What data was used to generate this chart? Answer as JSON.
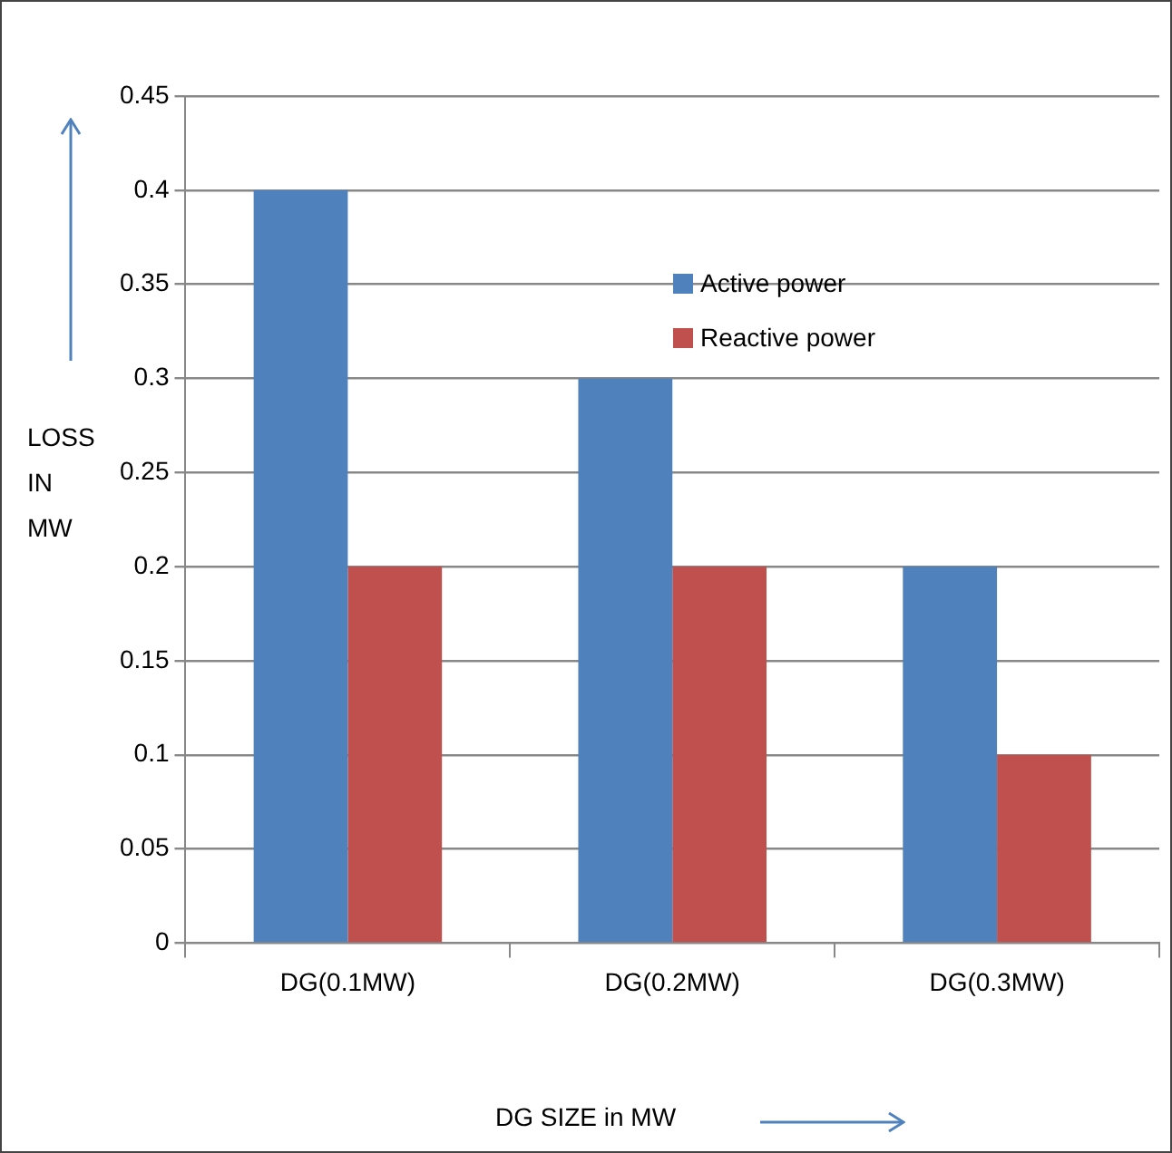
{
  "chart_data": {
    "type": "bar",
    "xlabel": "DG SIZE in MW",
    "ylabel": "LOSS IN MW",
    "categories": [
      "DG(0.1MW)",
      "DG(0.2MW)",
      "DG(0.3MW)"
    ],
    "series": [
      {
        "name": "Active power",
        "color": "#4f81bd",
        "values": [
          0.4,
          0.3,
          0.2
        ]
      },
      {
        "name": "Reactive power",
        "color": "#c0504d",
        "values": [
          0.2,
          0.2,
          0.1
        ]
      }
    ],
    "ylim": [
      0,
      0.45
    ],
    "yticks": [
      0,
      0.05,
      0.1,
      0.15,
      0.2,
      0.25,
      0.3,
      0.35,
      0.4,
      0.45
    ],
    "grid": "y",
    "legend": "top right"
  }
}
